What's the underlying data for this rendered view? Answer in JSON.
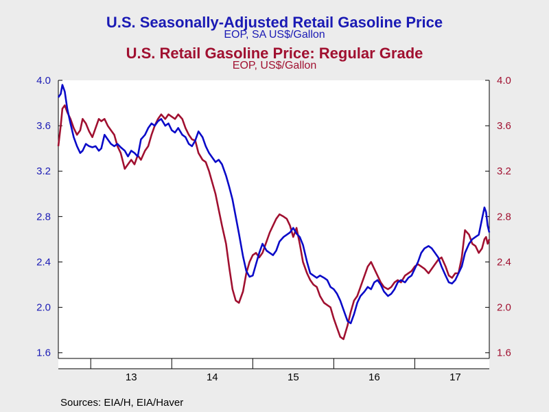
{
  "title1": "U.S. Seasonally-Adjusted Retail Gasoline Price",
  "subtitle1": "EOP, SA US$/Gallon",
  "title2": "U.S. Retail Gasoline Price: Regular Grade",
  "subtitle2": "EOP, US$/Gallon",
  "source": "Sources:  EIA/H, EIA/Haver",
  "colors": {
    "series1": "#0a0ac8",
    "series2": "#a01030",
    "plot_bg": "#ffffff"
  },
  "chart_data": {
    "type": "line",
    "x_categories": [
      "13",
      "14",
      "15",
      "16",
      "17"
    ],
    "x_start": 2012.6,
    "x_end": 2017.92,
    "left_axis": {
      "ylim": [
        1.55,
        4.0
      ],
      "ticks": [
        "1.6",
        "2.0",
        "2.4",
        "2.8",
        "3.2",
        "3.6",
        "4.0"
      ],
      "color": "#1a1ab4"
    },
    "right_axis": {
      "ylim": [
        1.55,
        4.0
      ],
      "ticks": [
        "1.6",
        "2.0",
        "2.4",
        "2.8",
        "3.2",
        "3.6",
        "4.0"
      ],
      "color": "#a01030"
    },
    "grid": false,
    "series": [
      {
        "name": "U.S. Seasonally-Adjusted Retail Gasoline Price",
        "axis": "left",
        "points": [
          [
            2012.6,
            3.85
          ],
          [
            2012.63,
            3.88
          ],
          [
            2012.65,
            3.96
          ],
          [
            2012.68,
            3.9
          ],
          [
            2012.71,
            3.75
          ],
          [
            2012.75,
            3.62
          ],
          [
            2012.79,
            3.5
          ],
          [
            2012.83,
            3.42
          ],
          [
            2012.87,
            3.36
          ],
          [
            2012.9,
            3.38
          ],
          [
            2012.94,
            3.44
          ],
          [
            2012.98,
            3.42
          ],
          [
            2013.02,
            3.41
          ],
          [
            2013.06,
            3.42
          ],
          [
            2013.1,
            3.38
          ],
          [
            2013.13,
            3.4
          ],
          [
            2013.17,
            3.52
          ],
          [
            2013.21,
            3.48
          ],
          [
            2013.25,
            3.44
          ],
          [
            2013.29,
            3.42
          ],
          [
            2013.33,
            3.44
          ],
          [
            2013.37,
            3.41
          ],
          [
            2013.42,
            3.38
          ],
          [
            2013.46,
            3.33
          ],
          [
            2013.5,
            3.38
          ],
          [
            2013.54,
            3.36
          ],
          [
            2013.58,
            3.33
          ],
          [
            2013.62,
            3.48
          ],
          [
            2013.67,
            3.52
          ],
          [
            2013.71,
            3.58
          ],
          [
            2013.75,
            3.62
          ],
          [
            2013.79,
            3.6
          ],
          [
            2013.83,
            3.64
          ],
          [
            2013.87,
            3.66
          ],
          [
            2013.92,
            3.6
          ],
          [
            2013.96,
            3.62
          ],
          [
            2014.0,
            3.56
          ],
          [
            2014.04,
            3.54
          ],
          [
            2014.08,
            3.58
          ],
          [
            2014.13,
            3.52
          ],
          [
            2014.17,
            3.5
          ],
          [
            2014.21,
            3.44
          ],
          [
            2014.25,
            3.42
          ],
          [
            2014.29,
            3.47
          ],
          [
            2014.33,
            3.55
          ],
          [
            2014.38,
            3.5
          ],
          [
            2014.42,
            3.42
          ],
          [
            2014.46,
            3.36
          ],
          [
            2014.5,
            3.32
          ],
          [
            2014.54,
            3.28
          ],
          [
            2014.58,
            3.3
          ],
          [
            2014.62,
            3.26
          ],
          [
            2014.67,
            3.16
          ],
          [
            2014.71,
            3.06
          ],
          [
            2014.75,
            2.95
          ],
          [
            2014.79,
            2.8
          ],
          [
            2014.83,
            2.65
          ],
          [
            2014.88,
            2.45
          ],
          [
            2014.92,
            2.32
          ],
          [
            2014.96,
            2.27
          ],
          [
            2015.0,
            2.28
          ],
          [
            2015.04,
            2.38
          ],
          [
            2015.08,
            2.48
          ],
          [
            2015.12,
            2.56
          ],
          [
            2015.17,
            2.5
          ],
          [
            2015.21,
            2.48
          ],
          [
            2015.25,
            2.46
          ],
          [
            2015.29,
            2.5
          ],
          [
            2015.33,
            2.58
          ],
          [
            2015.38,
            2.62
          ],
          [
            2015.42,
            2.64
          ],
          [
            2015.46,
            2.66
          ],
          [
            2015.5,
            2.7
          ],
          [
            2015.54,
            2.65
          ],
          [
            2015.58,
            2.62
          ],
          [
            2015.62,
            2.55
          ],
          [
            2015.67,
            2.4
          ],
          [
            2015.71,
            2.3
          ],
          [
            2015.75,
            2.28
          ],
          [
            2015.79,
            2.26
          ],
          [
            2015.83,
            2.28
          ],
          [
            2015.88,
            2.26
          ],
          [
            2015.92,
            2.24
          ],
          [
            2015.96,
            2.18
          ],
          [
            2016.0,
            2.16
          ],
          [
            2016.04,
            2.12
          ],
          [
            2016.08,
            2.06
          ],
          [
            2016.12,
            1.98
          ],
          [
            2016.17,
            1.88
          ],
          [
            2016.21,
            1.86
          ],
          [
            2016.25,
            1.94
          ],
          [
            2016.29,
            2.04
          ],
          [
            2016.33,
            2.1
          ],
          [
            2016.38,
            2.14
          ],
          [
            2016.42,
            2.18
          ],
          [
            2016.46,
            2.16
          ],
          [
            2016.5,
            2.22
          ],
          [
            2016.54,
            2.24
          ],
          [
            2016.58,
            2.2
          ],
          [
            2016.62,
            2.14
          ],
          [
            2016.67,
            2.1
          ],
          [
            2016.71,
            2.12
          ],
          [
            2016.75,
            2.16
          ],
          [
            2016.79,
            2.22
          ],
          [
            2016.83,
            2.24
          ],
          [
            2016.88,
            2.22
          ],
          [
            2016.92,
            2.26
          ],
          [
            2016.96,
            2.28
          ],
          [
            2017.0,
            2.34
          ],
          [
            2017.04,
            2.4
          ],
          [
            2017.08,
            2.48
          ],
          [
            2017.12,
            2.52
          ],
          [
            2017.17,
            2.54
          ],
          [
            2017.21,
            2.52
          ],
          [
            2017.25,
            2.48
          ],
          [
            2017.29,
            2.44
          ],
          [
            2017.33,
            2.36
          ],
          [
            2017.38,
            2.28
          ],
          [
            2017.42,
            2.22
          ],
          [
            2017.46,
            2.21
          ],
          [
            2017.5,
            2.24
          ],
          [
            2017.54,
            2.3
          ],
          [
            2017.58,
            2.36
          ],
          [
            2017.62,
            2.48
          ],
          [
            2017.67,
            2.56
          ],
          [
            2017.71,
            2.6
          ],
          [
            2017.75,
            2.62
          ],
          [
            2017.79,
            2.64
          ],
          [
            2017.83,
            2.78
          ],
          [
            2017.86,
            2.88
          ],
          [
            2017.88,
            2.84
          ],
          [
            2017.9,
            2.72
          ],
          [
            2017.92,
            2.66
          ]
        ]
      },
      {
        "name": "U.S. Retail Gasoline Price: Regular Grade",
        "axis": "right",
        "points": [
          [
            2012.6,
            3.42
          ],
          [
            2012.63,
            3.6
          ],
          [
            2012.65,
            3.75
          ],
          [
            2012.68,
            3.78
          ],
          [
            2012.71,
            3.72
          ],
          [
            2012.75,
            3.66
          ],
          [
            2012.79,
            3.58
          ],
          [
            2012.83,
            3.52
          ],
          [
            2012.87,
            3.56
          ],
          [
            2012.9,
            3.66
          ],
          [
            2012.94,
            3.62
          ],
          [
            2012.98,
            3.55
          ],
          [
            2013.02,
            3.5
          ],
          [
            2013.06,
            3.58
          ],
          [
            2013.1,
            3.66
          ],
          [
            2013.13,
            3.64
          ],
          [
            2013.17,
            3.66
          ],
          [
            2013.21,
            3.6
          ],
          [
            2013.25,
            3.56
          ],
          [
            2013.29,
            3.52
          ],
          [
            2013.33,
            3.42
          ],
          [
            2013.37,
            3.36
          ],
          [
            2013.42,
            3.22
          ],
          [
            2013.46,
            3.26
          ],
          [
            2013.5,
            3.3
          ],
          [
            2013.54,
            3.26
          ],
          [
            2013.58,
            3.34
          ],
          [
            2013.62,
            3.3
          ],
          [
            2013.67,
            3.38
          ],
          [
            2013.71,
            3.42
          ],
          [
            2013.75,
            3.52
          ],
          [
            2013.79,
            3.6
          ],
          [
            2013.83,
            3.66
          ],
          [
            2013.87,
            3.7
          ],
          [
            2013.92,
            3.66
          ],
          [
            2013.96,
            3.7
          ],
          [
            2014.0,
            3.68
          ],
          [
            2014.04,
            3.66
          ],
          [
            2014.08,
            3.7
          ],
          [
            2014.13,
            3.66
          ],
          [
            2014.17,
            3.58
          ],
          [
            2014.21,
            3.52
          ],
          [
            2014.25,
            3.48
          ],
          [
            2014.29,
            3.47
          ],
          [
            2014.33,
            3.36
          ],
          [
            2014.38,
            3.3
          ],
          [
            2014.42,
            3.28
          ],
          [
            2014.46,
            3.2
          ],
          [
            2014.5,
            3.1
          ],
          [
            2014.54,
            3.0
          ],
          [
            2014.58,
            2.86
          ],
          [
            2014.62,
            2.72
          ],
          [
            2014.67,
            2.56
          ],
          [
            2014.71,
            2.35
          ],
          [
            2014.75,
            2.16
          ],
          [
            2014.79,
            2.06
          ],
          [
            2014.83,
            2.04
          ],
          [
            2014.88,
            2.14
          ],
          [
            2014.92,
            2.3
          ],
          [
            2014.96,
            2.4
          ],
          [
            2015.0,
            2.46
          ],
          [
            2015.04,
            2.48
          ],
          [
            2015.08,
            2.44
          ],
          [
            2015.12,
            2.48
          ],
          [
            2015.17,
            2.58
          ],
          [
            2015.21,
            2.66
          ],
          [
            2015.25,
            2.72
          ],
          [
            2015.29,
            2.78
          ],
          [
            2015.33,
            2.82
          ],
          [
            2015.38,
            2.8
          ],
          [
            2015.42,
            2.78
          ],
          [
            2015.46,
            2.72
          ],
          [
            2015.5,
            2.62
          ],
          [
            2015.54,
            2.7
          ],
          [
            2015.58,
            2.56
          ],
          [
            2015.62,
            2.4
          ],
          [
            2015.67,
            2.3
          ],
          [
            2015.71,
            2.24
          ],
          [
            2015.75,
            2.2
          ],
          [
            2015.79,
            2.18
          ],
          [
            2015.83,
            2.1
          ],
          [
            2015.88,
            2.04
          ],
          [
            2015.92,
            2.02
          ],
          [
            2015.96,
            2.0
          ],
          [
            2016.0,
            1.9
          ],
          [
            2016.04,
            1.82
          ],
          [
            2016.08,
            1.74
          ],
          [
            2016.12,
            1.72
          ],
          [
            2016.17,
            1.84
          ],
          [
            2016.21,
            1.96
          ],
          [
            2016.25,
            2.06
          ],
          [
            2016.29,
            2.1
          ],
          [
            2016.33,
            2.18
          ],
          [
            2016.38,
            2.28
          ],
          [
            2016.42,
            2.36
          ],
          [
            2016.46,
            2.4
          ],
          [
            2016.5,
            2.34
          ],
          [
            2016.54,
            2.28
          ],
          [
            2016.58,
            2.22
          ],
          [
            2016.62,
            2.18
          ],
          [
            2016.67,
            2.16
          ],
          [
            2016.71,
            2.18
          ],
          [
            2016.75,
            2.22
          ],
          [
            2016.79,
            2.24
          ],
          [
            2016.83,
            2.22
          ],
          [
            2016.88,
            2.28
          ],
          [
            2016.92,
            2.3
          ],
          [
            2016.96,
            2.32
          ],
          [
            2017.0,
            2.36
          ],
          [
            2017.04,
            2.38
          ],
          [
            2017.08,
            2.36
          ],
          [
            2017.12,
            2.34
          ],
          [
            2017.17,
            2.3
          ],
          [
            2017.21,
            2.34
          ],
          [
            2017.25,
            2.38
          ],
          [
            2017.29,
            2.42
          ],
          [
            2017.33,
            2.44
          ],
          [
            2017.38,
            2.36
          ],
          [
            2017.42,
            2.28
          ],
          [
            2017.46,
            2.26
          ],
          [
            2017.5,
            2.3
          ],
          [
            2017.54,
            2.3
          ],
          [
            2017.58,
            2.44
          ],
          [
            2017.62,
            2.68
          ],
          [
            2017.67,
            2.64
          ],
          [
            2017.71,
            2.56
          ],
          [
            2017.75,
            2.54
          ],
          [
            2017.79,
            2.48
          ],
          [
            2017.83,
            2.52
          ],
          [
            2017.86,
            2.6
          ],
          [
            2017.88,
            2.62
          ],
          [
            2017.9,
            2.56
          ],
          [
            2017.92,
            2.6
          ]
        ]
      }
    ]
  }
}
